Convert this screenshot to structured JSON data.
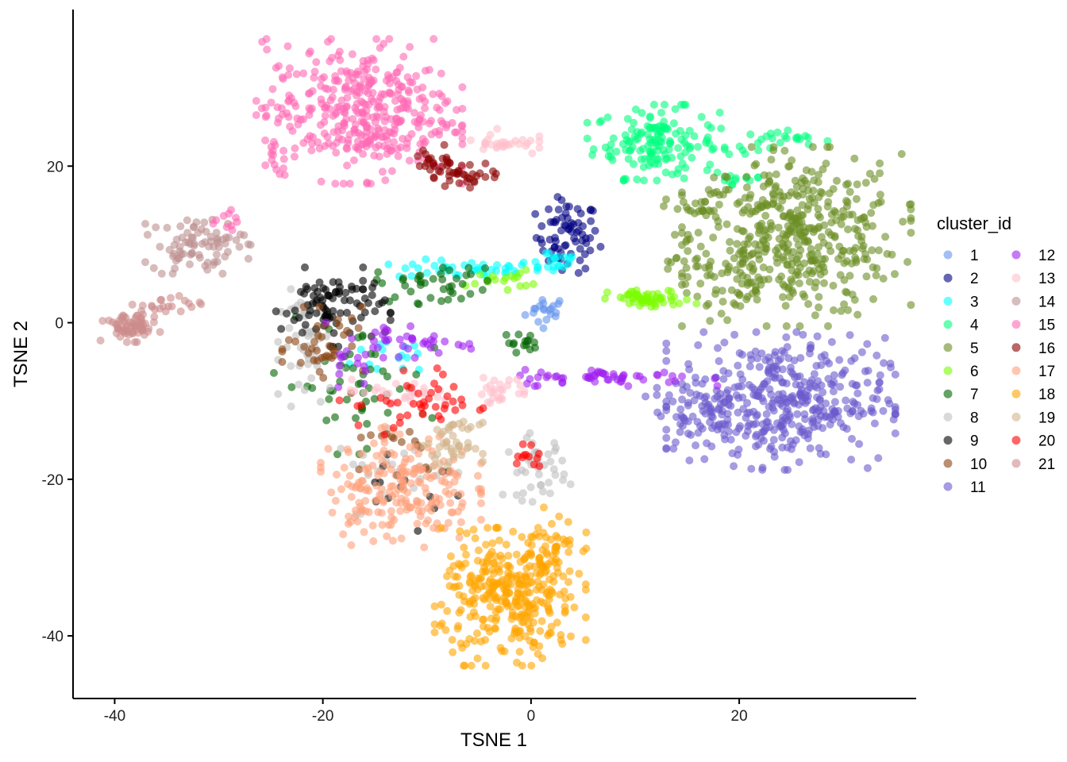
{
  "chart_data": {
    "type": "scatter",
    "title": "",
    "xlabel": "TSNE 1",
    "ylabel": "TSNE 2",
    "xlim": [
      -44,
      37
    ],
    "ylim": [
      -48,
      40
    ],
    "x_ticks": [
      -40,
      -20,
      0,
      20
    ],
    "y_ticks": [
      20,
      0,
      -20,
      -40
    ],
    "grid": false,
    "point_opacity": 0.6,
    "legend": {
      "title": "cluster_id",
      "placement": "right",
      "columns": 2
    },
    "clusters": [
      {
        "name": "1",
        "color": "#6495ED",
        "regions": [
          {
            "cx": 1.5,
            "cy": 1.5,
            "sx": 1.0,
            "sy": 1.0,
            "n": 20
          }
        ]
      },
      {
        "name": "2",
        "color": "#000080",
        "regions": [
          {
            "cx": 3.5,
            "cy": 11,
            "sx": 1.5,
            "sy": 2.3,
            "n": 70
          }
        ]
      },
      {
        "name": "3",
        "color": "#00FFFF",
        "regions": [
          {
            "cx": -6,
            "cy": 6.8,
            "sx": 3.5,
            "sy": 0.6,
            "n": 40
          },
          {
            "cx": 2,
            "cy": 8,
            "sx": 1.5,
            "sy": 0.8,
            "n": 20
          },
          {
            "cx": -12,
            "cy": -4,
            "sx": 2.5,
            "sy": 1.5,
            "n": 15
          }
        ]
      },
      {
        "name": "4",
        "color": "#00FF7F",
        "regions": [
          {
            "cx": 12,
            "cy": 23,
            "sx": 3.0,
            "sy": 2.2,
            "n": 150
          },
          {
            "cx": 24,
            "cy": 23,
            "sx": 2.5,
            "sy": 0.8,
            "n": 25
          },
          {
            "cx": 20,
            "cy": 18.5,
            "sx": 1.5,
            "sy": 0.8,
            "n": 12
          }
        ]
      },
      {
        "name": "5",
        "color": "#6B8E23",
        "regions": [
          {
            "cx": 25.5,
            "cy": 11,
            "sx": 5.0,
            "sy": 5.2,
            "n": 420
          },
          {
            "cx": 18,
            "cy": 7,
            "sx": 2.5,
            "sy": 2.2,
            "n": 60
          },
          {
            "cx": 16,
            "cy": 14.5,
            "sx": 1.5,
            "sy": 0.9,
            "n": 25
          }
        ]
      },
      {
        "name": "6",
        "color": "#7CFC00",
        "regions": [
          {
            "cx": 11.5,
            "cy": 3,
            "sx": 2.0,
            "sy": 0.6,
            "n": 55
          },
          {
            "cx": -3,
            "cy": 5.5,
            "sx": 1.5,
            "sy": 0.6,
            "n": 18
          }
        ]
      },
      {
        "name": "7",
        "color": "#006400",
        "regions": [
          {
            "cx": -9,
            "cy": 5,
            "sx": 3.0,
            "sy": 1.2,
            "n": 40
          },
          {
            "cx": -17,
            "cy": -8,
            "sx": 3.5,
            "sy": 4.0,
            "n": 50
          },
          {
            "cx": -1,
            "cy": -2.5,
            "sx": 0.8,
            "sy": 0.6,
            "n": 15
          }
        ]
      },
      {
        "name": "8",
        "color": "#C0C0C0",
        "regions": [
          {
            "cx": -21,
            "cy": -3,
            "sx": 1.5,
            "sy": 3.5,
            "n": 50
          },
          {
            "cx": 0.5,
            "cy": -18.5,
            "sx": 1.5,
            "sy": 2.0,
            "n": 40
          },
          {
            "cx": -13,
            "cy": -19,
            "sx": 3.0,
            "sy": 2.5,
            "n": 20
          }
        ]
      },
      {
        "name": "9",
        "color": "#000000",
        "regions": [
          {
            "cx": -19,
            "cy": 2,
            "sx": 2.5,
            "sy": 2.3,
            "n": 90
          },
          {
            "cx": -12,
            "cy": -20,
            "sx": 3.0,
            "sy": 3.0,
            "n": 15
          }
        ]
      },
      {
        "name": "10",
        "color": "#8B4513",
        "regions": [
          {
            "cx": -19.5,
            "cy": -3.5,
            "sx": 2.0,
            "sy": 2.5,
            "n": 40
          },
          {
            "cx": -13,
            "cy": -16,
            "sx": 3.0,
            "sy": 2.0,
            "n": 15
          }
        ]
      },
      {
        "name": "11",
        "color": "#6A5ACD",
        "regions": [
          {
            "cx": 24,
            "cy": -10,
            "sx": 5.0,
            "sy": 4.0,
            "n": 380
          },
          {
            "cx": 16.5,
            "cy": -11,
            "sx": 2.5,
            "sy": 3.0,
            "n": 60
          }
        ]
      },
      {
        "name": "12",
        "color": "#A020F0",
        "regions": [
          {
            "cx": 8,
            "cy": -7,
            "sx": 4.5,
            "sy": 0.5,
            "n": 55
          },
          {
            "cx": -12,
            "cy": -2.5,
            "sx": 3.5,
            "sy": 1.2,
            "n": 40
          },
          {
            "cx": -17,
            "cy": -5,
            "sx": 1.5,
            "sy": 1.5,
            "n": 10
          }
        ]
      },
      {
        "name": "13",
        "color": "#FFC0CB",
        "regions": [
          {
            "cx": -2.5,
            "cy": 23,
            "sx": 1.5,
            "sy": 0.8,
            "n": 30
          },
          {
            "cx": -3,
            "cy": -8.5,
            "sx": 1.5,
            "sy": 0.8,
            "n": 25
          },
          {
            "cx": -13,
            "cy": -9,
            "sx": 3.0,
            "sy": 0.8,
            "n": 25
          }
        ]
      },
      {
        "name": "14",
        "color": "#BC8F8F",
        "regions": [
          {
            "cx": -32,
            "cy": 10,
            "sx": 2.3,
            "sy": 1.7,
            "n": 80
          }
        ]
      },
      {
        "name": "15",
        "color": "#FF69B4",
        "regions": [
          {
            "cx": -16.5,
            "cy": 27,
            "sx": 4.5,
            "sy": 4.2,
            "n": 380
          },
          {
            "cx": -24.5,
            "cy": 20.5,
            "sx": 0.5,
            "sy": 1.0,
            "n": 12
          },
          {
            "cx": -29,
            "cy": 13,
            "sx": 0.7,
            "sy": 0.7,
            "n": 10
          }
        ]
      },
      {
        "name": "16",
        "color": "#8B0000",
        "regions": [
          {
            "cx": -9,
            "cy": 20.5,
            "sx": 1.0,
            "sy": 1.0,
            "n": 25
          },
          {
            "cx": -6,
            "cy": 19,
            "sx": 1.5,
            "sy": 0.8,
            "n": 30
          }
        ]
      },
      {
        "name": "17",
        "color": "#FFA07A",
        "regions": [
          {
            "cx": -12.5,
            "cy": -21,
            "sx": 3.5,
            "sy": 3.5,
            "n": 200
          }
        ]
      },
      {
        "name": "18",
        "color": "#FFA500",
        "regions": [
          {
            "cx": -2,
            "cy": -35,
            "sx": 3.3,
            "sy": 4.0,
            "n": 330
          },
          {
            "cx": 2,
            "cy": -28,
            "sx": 1.5,
            "sy": 2.0,
            "n": 40
          }
        ]
      },
      {
        "name": "19",
        "color": "#D2B48C",
        "regions": [
          {
            "cx": -7.5,
            "cy": -15.5,
            "sx": 1.3,
            "sy": 1.3,
            "n": 45
          }
        ]
      },
      {
        "name": "20",
        "color": "#FF0000",
        "regions": [
          {
            "cx": -9,
            "cy": -10,
            "sx": 2.0,
            "sy": 2.0,
            "n": 30
          },
          {
            "cx": 0,
            "cy": -17,
            "sx": 1.0,
            "sy": 1.0,
            "n": 12
          },
          {
            "cx": -14,
            "cy": -11,
            "sx": 2.0,
            "sy": 1.5,
            "n": 12
          }
        ]
      },
      {
        "name": "21",
        "color": "#CD8C8C",
        "regions": [
          {
            "cx": -38.5,
            "cy": -0.5,
            "sx": 1.3,
            "sy": 0.9,
            "n": 70
          },
          {
            "cx": -35,
            "cy": 2,
            "sx": 1.5,
            "sy": 0.7,
            "n": 20
          }
        ]
      }
    ]
  }
}
